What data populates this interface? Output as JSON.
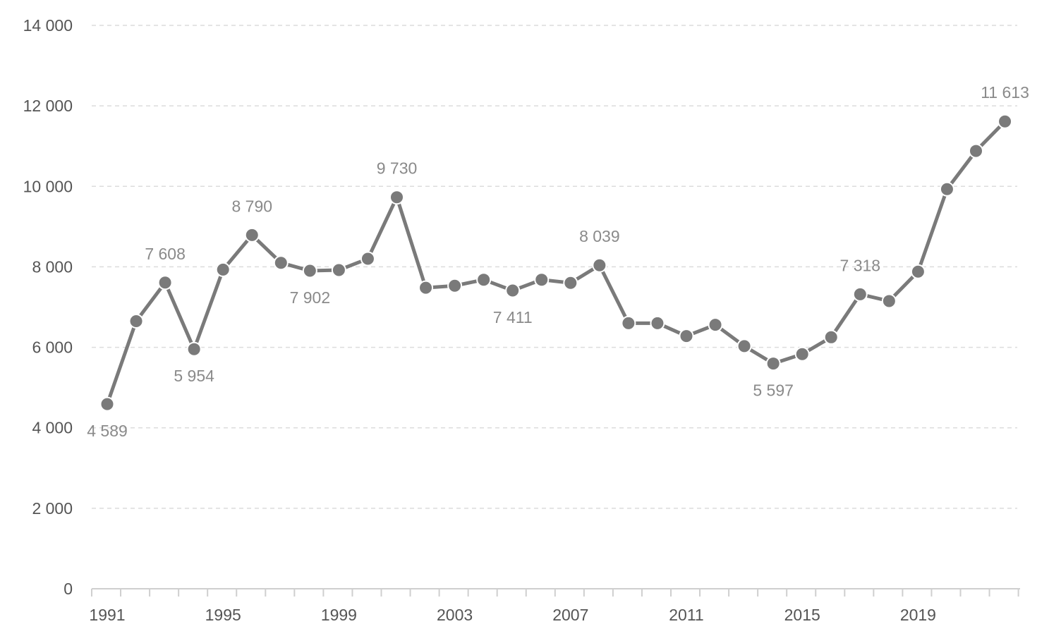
{
  "chart_data": {
    "type": "line",
    "title": "",
    "xlabel": "",
    "ylabel": "",
    "x": [
      1991,
      1992,
      1993,
      1994,
      1995,
      1996,
      1997,
      1998,
      1999,
      2000,
      2001,
      2002,
      2003,
      2004,
      2005,
      2006,
      2007,
      2008,
      2009,
      2010,
      2011,
      2012,
      2013,
      2014,
      2015,
      2016,
      2017,
      2018,
      2019,
      2020,
      2021,
      2022
    ],
    "series": [
      {
        "color": "#7a7a7a",
        "values": [
          4589,
          6650,
          7608,
          5954,
          7930,
          8790,
          8100,
          7902,
          7920,
          8200,
          9730,
          7480,
          7530,
          7680,
          7411,
          7680,
          7600,
          8039,
          6600,
          6600,
          6280,
          6560,
          6030,
          5597,
          5830,
          6250,
          7318,
          7150,
          7880,
          9930,
          10880,
          11613
        ]
      }
    ],
    "data_labels": [
      {
        "x": 1991,
        "text": "4 589",
        "position": "below"
      },
      {
        "x": 1993,
        "text": "7 608",
        "position": "above"
      },
      {
        "x": 1994,
        "text": "5 954",
        "position": "below"
      },
      {
        "x": 1996,
        "text": "8 790",
        "position": "above"
      },
      {
        "x": 1998,
        "text": "7 902",
        "position": "below"
      },
      {
        "x": 2001,
        "text": "9 730",
        "position": "above"
      },
      {
        "x": 2005,
        "text": "7 411",
        "position": "below"
      },
      {
        "x": 2008,
        "text": "8 039",
        "position": "above"
      },
      {
        "x": 2014,
        "text": "5 597",
        "position": "below"
      },
      {
        "x": 2017,
        "text": "7 318",
        "position": "above"
      },
      {
        "x": 2022,
        "text": "11 613",
        "position": "above"
      }
    ],
    "y_ticks": [
      0,
      2000,
      4000,
      6000,
      8000,
      10000,
      12000,
      14000
    ],
    "y_tick_labels": [
      "0",
      "2 000",
      "4 000",
      "6 000",
      "8 000",
      "10 000",
      "12 000",
      "14 000"
    ],
    "x_ticks": [
      1991,
      1995,
      1999,
      2003,
      2007,
      2011,
      2015,
      2019
    ],
    "x_tick_labels": [
      "1991",
      "1995",
      "1999",
      "2003",
      "2007",
      "2011",
      "2015",
      "2019"
    ],
    "ylim": [
      0,
      14000
    ],
    "xlim": [
      1991,
      2022
    ],
    "grid": "horizontal dashed",
    "legend": "none"
  }
}
